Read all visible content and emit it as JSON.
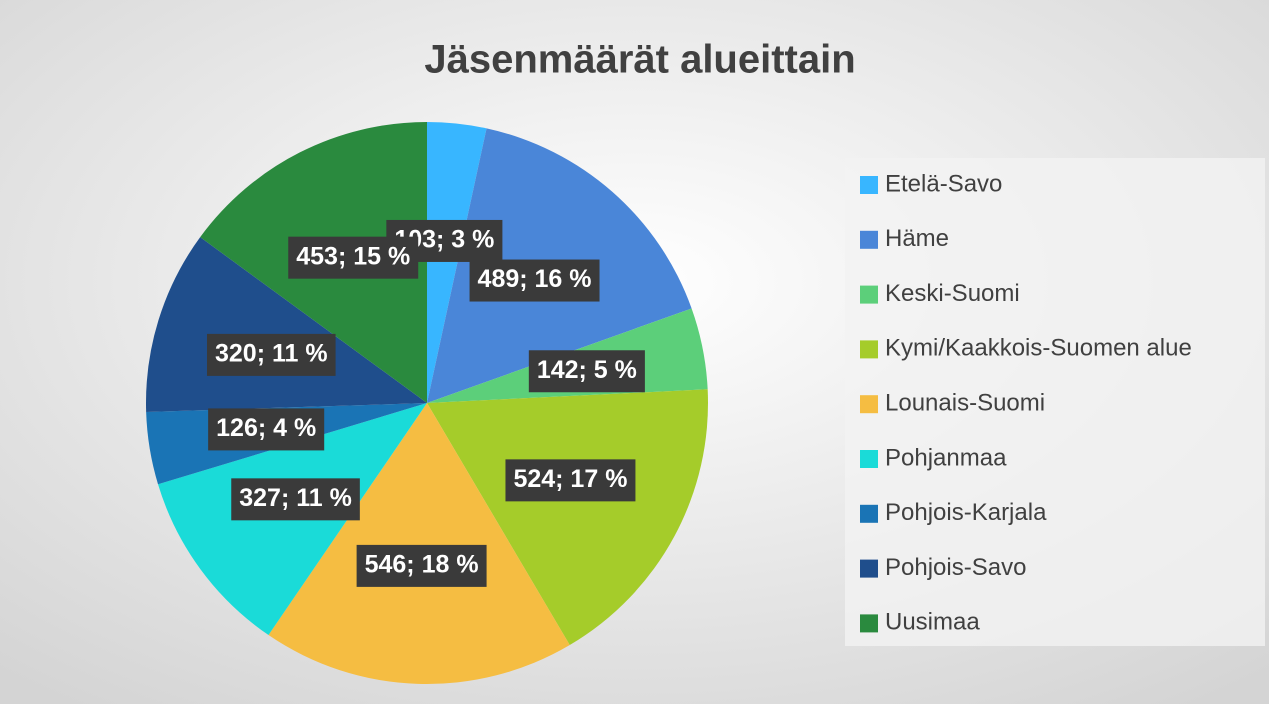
{
  "chart_data": {
    "type": "pie",
    "title": "Jäsenmäärät alueittain",
    "categories": [
      "Etelä-Savo",
      "Häme",
      "Keski-Suomi",
      "Kymi/Kaakkois-Suomen alue",
      "Lounais-Suomi",
      "Pohjanmaa",
      "Pohjois-Karjala",
      "Pohjois-Savo",
      "Uusimaa"
    ],
    "values": [
      103,
      489,
      142,
      524,
      546,
      327,
      126,
      320,
      453
    ],
    "value_labels": [
      "103; 3 %",
      "489; 16 %",
      "142; 5 %",
      "524; 17 %",
      "546; 18 %",
      "327; 11 %",
      "126; 4 %",
      "320; 11 %",
      "453; 15 %"
    ],
    "colors": [
      "#38b6ff",
      "#4a86d8",
      "#5ccf7a",
      "#a5cc2a",
      "#f5bd42",
      "#1adbd8",
      "#1a74b5",
      "#1f4e8c",
      "#2a8a3e"
    ],
    "legend": "right"
  }
}
